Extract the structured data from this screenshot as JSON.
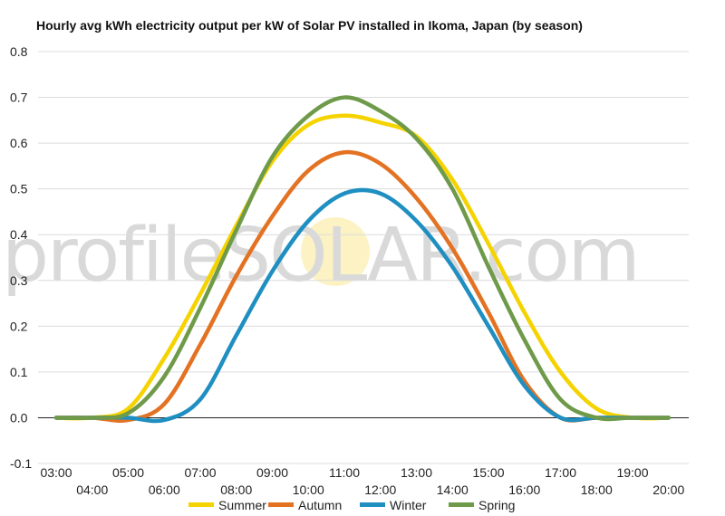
{
  "chart_data": {
    "type": "line",
    "title": "Hourly avg kWh electricity output per kW of Solar PV installed in Ikoma, Japan (by season)",
    "xlabel": "",
    "ylabel": "",
    "ylim": [
      -0.1,
      0.8
    ],
    "yticks": [
      "0.8",
      "0.7",
      "0.6",
      "0.5",
      "0.4",
      "0.3",
      "0.2",
      "0.1",
      "0.0",
      "-0.1"
    ],
    "ytick_values": [
      0.8,
      0.7,
      0.6,
      0.5,
      0.4,
      0.3,
      0.2,
      0.1,
      0.0,
      -0.1
    ],
    "categories": [
      "03:00",
      "04:00",
      "05:00",
      "06:00",
      "07:00",
      "08:00",
      "09:00",
      "10:00",
      "11:00",
      "12:00",
      "13:00",
      "14:00",
      "15:00",
      "16:00",
      "17:00",
      "18:00",
      "19:00",
      "20:00"
    ],
    "grid": true,
    "legend_position": "bottom",
    "watermark": "profileSOLAR.com",
    "series": [
      {
        "name": "Summer",
        "color": "#f5d300",
        "values": [
          0.0,
          0.0,
          0.02,
          0.13,
          0.27,
          0.42,
          0.56,
          0.64,
          0.66,
          0.645,
          0.615,
          0.52,
          0.38,
          0.23,
          0.1,
          0.02,
          0.0,
          0.0
        ]
      },
      {
        "name": "Autumn",
        "color": "#e37222",
        "values": [
          0.0,
          0.0,
          -0.005,
          0.03,
          0.16,
          0.31,
          0.44,
          0.54,
          0.58,
          0.555,
          0.48,
          0.37,
          0.23,
          0.08,
          0.0,
          0.0,
          0.0,
          0.0
        ]
      },
      {
        "name": "Winter",
        "color": "#1f8fc1",
        "values": [
          0.0,
          0.0,
          0.0,
          -0.005,
          0.04,
          0.18,
          0.32,
          0.43,
          0.49,
          0.49,
          0.43,
          0.33,
          0.2,
          0.07,
          0.0,
          0.0,
          0.0,
          0.0
        ]
      },
      {
        "name": "Spring",
        "color": "#6e9a4a",
        "values": [
          0.0,
          0.0,
          0.01,
          0.09,
          0.24,
          0.41,
          0.57,
          0.66,
          0.7,
          0.67,
          0.61,
          0.5,
          0.33,
          0.17,
          0.04,
          0.0,
          0.0,
          0.0
        ]
      }
    ]
  }
}
